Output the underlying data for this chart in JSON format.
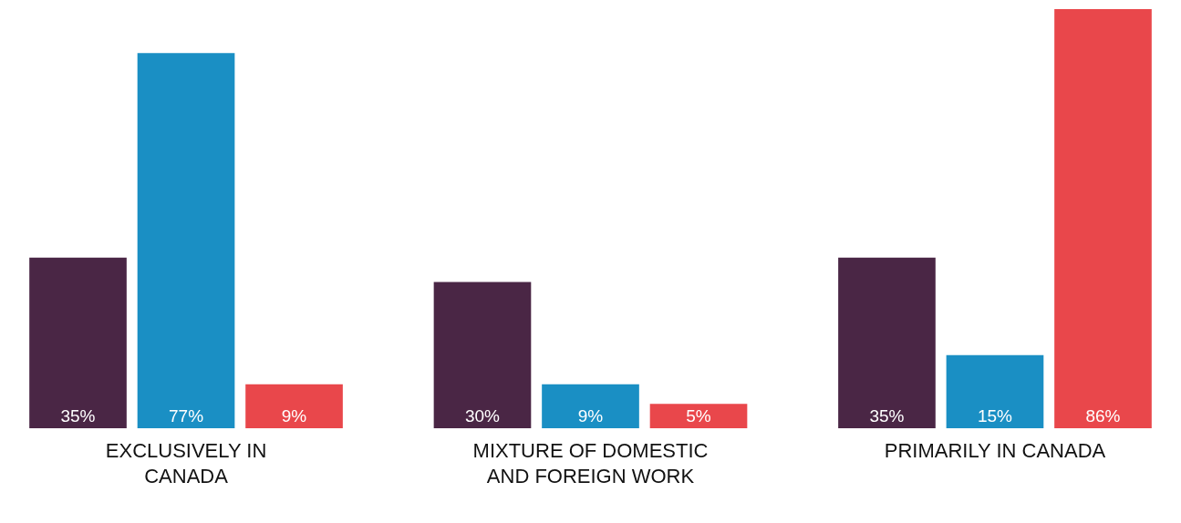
{
  "chart_data": {
    "type": "bar",
    "categories": [
      "EXCLUSIVELY IN CANADA",
      "MIXTURE OF DOMESTIC AND FOREIGN WORK",
      "PRIMARILY IN CANADA"
    ],
    "series": [
      {
        "color": "#4a2645",
        "values": [
          35,
          30,
          35
        ],
        "value_labels": [
          "35%",
          "30%",
          "35%"
        ]
      },
      {
        "color": "#1a8fc4",
        "values": [
          77,
          9,
          15
        ],
        "value_labels": [
          "77%",
          "9%",
          "15%"
        ]
      },
      {
        "color": "#e9474b",
        "values": [
          9,
          5,
          86
        ],
        "value_labels": [
          "9%",
          "5%",
          "86%"
        ]
      }
    ],
    "grid": false,
    "legend": false
  }
}
